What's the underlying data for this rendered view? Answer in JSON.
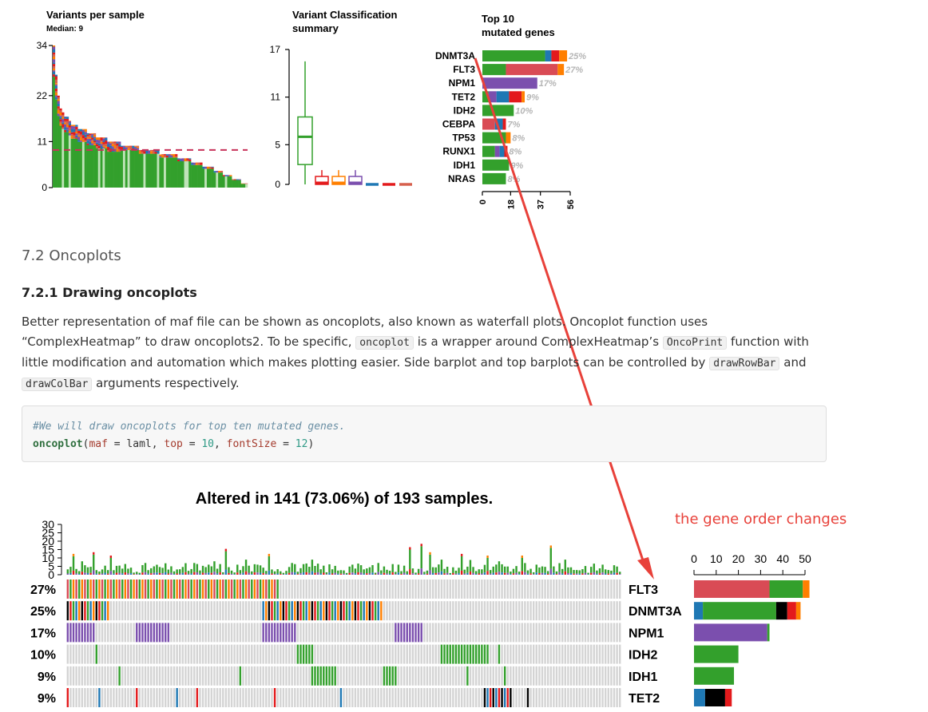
{
  "chart_data": [
    {
      "type": "bar",
      "title": "Variants per sample",
      "subtitle": "Median: 9",
      "yticks": [
        0,
        11,
        22,
        34
      ],
      "ylim": [
        0,
        34
      ],
      "median": 9,
      "sample_totals": [
        34,
        27,
        22,
        19,
        18,
        17,
        17,
        16,
        15,
        15,
        15,
        14,
        14,
        14,
        14,
        13,
        13,
        13,
        13,
        12,
        12,
        12,
        12,
        12,
        11,
        11,
        11,
        11,
        11,
        11,
        10,
        10,
        10,
        10,
        10,
        10,
        10,
        10,
        9,
        9,
        9,
        9,
        9,
        9,
        9,
        9,
        9,
        8,
        8,
        8,
        8,
        8,
        8,
        8,
        8,
        7,
        7,
        7,
        7,
        7,
        7,
        6,
        6,
        6,
        6,
        6,
        5,
        5,
        5,
        5,
        5,
        4,
        4,
        4,
        4,
        3,
        3,
        3,
        3,
        2,
        2,
        2,
        2,
        1,
        1,
        1
      ],
      "colors": {
        "missense": "#33a02c",
        "nonsense": "#e31a1c",
        "frameshift_del": "#1f78b4",
        "frameshift_ins": "#7b4fae",
        "inframe_ins": "#ff7f00",
        "splice": "#d6604d"
      }
    },
    {
      "type": "box",
      "title": "Variant Classification summary",
      "title_lines": [
        "Variant Classification",
        "summary"
      ],
      "yticks": [
        0,
        5,
        11,
        17
      ],
      "ylim": [
        0,
        17
      ],
      "boxes": [
        {
          "color": "#33a02c",
          "min": 0,
          "q1": 2.5,
          "median": 6,
          "q3": 8.5,
          "max": 15.5
        },
        {
          "color": "#e31a1c",
          "min": 0,
          "q1": 0,
          "median": 0.2,
          "q3": 1,
          "max": 1.8
        },
        {
          "color": "#ff7f00",
          "min": 0,
          "q1": 0,
          "median": 0.2,
          "q3": 1,
          "max": 1.8
        },
        {
          "color": "#7b4fae",
          "min": 0,
          "q1": 0,
          "median": 0.2,
          "q3": 1,
          "max": 1.8
        },
        {
          "color": "#1f78b4",
          "min": 0,
          "q1": 0,
          "median": 0,
          "q3": 0,
          "max": 0
        },
        {
          "color": "#e31a1c",
          "min": 0,
          "q1": 0,
          "median": 0,
          "q3": 0,
          "max": 0
        },
        {
          "color": "#d6604d",
          "min": 0,
          "q1": 0,
          "median": 0,
          "q3": 0,
          "max": 0
        }
      ]
    },
    {
      "type": "bar",
      "orientation": "horizontal",
      "title": "Top 10 mutated genes",
      "title_lines": [
        "Top 10",
        "mutated genes"
      ],
      "xticks": [
        "0",
        "18",
        "37",
        "56"
      ],
      "xlim": [
        0,
        56
      ],
      "genes": [
        "DNMT3A",
        "FLT3",
        "NPM1",
        "TET2",
        "IDH2",
        "CEBPA",
        "TP53",
        "RUNX1",
        "IDH1",
        "NRAS"
      ],
      "percent_labels": [
        "25%",
        "27%",
        "17%",
        "9%",
        "10%",
        "7%",
        "8%",
        "8%",
        "9%",
        "8%"
      ],
      "segments": [
        [
          {
            "c": "#33a02c",
            "v": 40
          },
          {
            "c": "#1f78b4",
            "v": 4
          },
          {
            "c": "#e31a1c",
            "v": 5
          },
          {
            "c": "#ff7f00",
            "v": 5
          }
        ],
        [
          {
            "c": "#33a02c",
            "v": 15
          },
          {
            "c": "#d94b55",
            "v": 33
          },
          {
            "c": "#ff7f00",
            "v": 4
          }
        ],
        [
          {
            "c": "#7b4fae",
            "v": 35
          }
        ],
        [
          {
            "c": "#33a02c",
            "v": 4
          },
          {
            "c": "#7b4fae",
            "v": 5
          },
          {
            "c": "#1f78b4",
            "v": 8
          },
          {
            "c": "#e31a1c",
            "v": 8
          },
          {
            "c": "#ff7f00",
            "v": 2
          }
        ],
        [
          {
            "c": "#33a02c",
            "v": 20
          }
        ],
        [
          {
            "c": "#d94b55",
            "v": 8
          },
          {
            "c": "#1f78b4",
            "v": 5
          },
          {
            "c": "#e31a1c",
            "v": 2
          }
        ],
        [
          {
            "c": "#33a02c",
            "v": 15
          },
          {
            "c": "#ff7f00",
            "v": 3
          }
        ],
        [
          {
            "c": "#33a02c",
            "v": 8
          },
          {
            "c": "#7b4fae",
            "v": 3
          },
          {
            "c": "#1f78b4",
            "v": 3
          },
          {
            "c": "#e31a1c",
            "v": 2
          }
        ],
        [
          {
            "c": "#33a02c",
            "v": 17
          }
        ],
        [
          {
            "c": "#33a02c",
            "v": 15
          }
        ]
      ]
    },
    {
      "type": "heatmap",
      "title": "Altered in 141 (73.06%) of 193 samples.",
      "top_yticks": [
        "0",
        "5",
        "10",
        "15",
        "20",
        "25",
        "30"
      ],
      "top_ylim": [
        0,
        30
      ],
      "n_samples": 193,
      "genes": [
        "FLT3",
        "DNMT3A",
        "NPM1",
        "IDH2",
        "IDH1",
        "TET2"
      ],
      "percent_labels": [
        "27%",
        "25%",
        "17%",
        "10%",
        "9%",
        "9%"
      ],
      "side_xticks": [
        "0",
        "10",
        "20",
        "30",
        "40",
        "50"
      ],
      "side_xlim": [
        0,
        50
      ],
      "side_segments": [
        [
          {
            "c": "#d94b55",
            "v": 34
          },
          {
            "c": "#33a02c",
            "v": 15
          },
          {
            "c": "#ff7f00",
            "v": 3
          }
        ],
        [
          {
            "c": "#1f78b4",
            "v": 4
          },
          {
            "c": "#33a02c",
            "v": 33
          },
          {
            "c": "#000000",
            "v": 5
          },
          {
            "c": "#e31a1c",
            "v": 4
          },
          {
            "c": "#ff7f00",
            "v": 2
          }
        ],
        [
          {
            "c": "#7b4fae",
            "v": 33
          },
          {
            "c": "#33a02c",
            "v": 1
          }
        ],
        [
          {
            "c": "#33a02c",
            "v": 20
          }
        ],
        [
          {
            "c": "#33a02c",
            "v": 18
          }
        ],
        [
          {
            "c": "#1f78b4",
            "v": 5
          },
          {
            "c": "#000000",
            "v": 9
          },
          {
            "c": "#e31a1c",
            "v": 3
          }
        ]
      ]
    }
  ],
  "section": {
    "heading": "7.2 Oncoplots",
    "subheading": "7.2.1 Drawing oncoplots",
    "para": {
      "p1": "Better representation of maf file can be shown as oncoplots, also known as waterfall plots. Oncoplot function uses “ComplexHeatmap” to draw oncoplots2. To be specific,",
      "code1": "oncoplot",
      "p2": "is a wrapper around ComplexHeatmap’s",
      "code2": "OncoPrint",
      "p3": "function with little modification and automation which makes plotting easier. Side barplot and top barplots can be controlled by",
      "code3": "drawRowBar",
      "p4": "and",
      "code4": "drawColBar",
      "p5": "arguments respectively."
    }
  },
  "code": {
    "comment": "#We will draw oncoplots for top ten mutated genes.",
    "fn": "oncoplot",
    "open": "(",
    "arg1": "maf",
    "eq1": " = ",
    "val1": "laml",
    "sep": ", ",
    "arg2": "top",
    "eq2": " = ",
    "val2": "10",
    "sep2": ", ",
    "arg3": "fontSize",
    "eq3": " = ",
    "val3": "12",
    "close": ")"
  },
  "annotation": {
    "text": "the gene order changes",
    "color": "#e8413a"
  }
}
